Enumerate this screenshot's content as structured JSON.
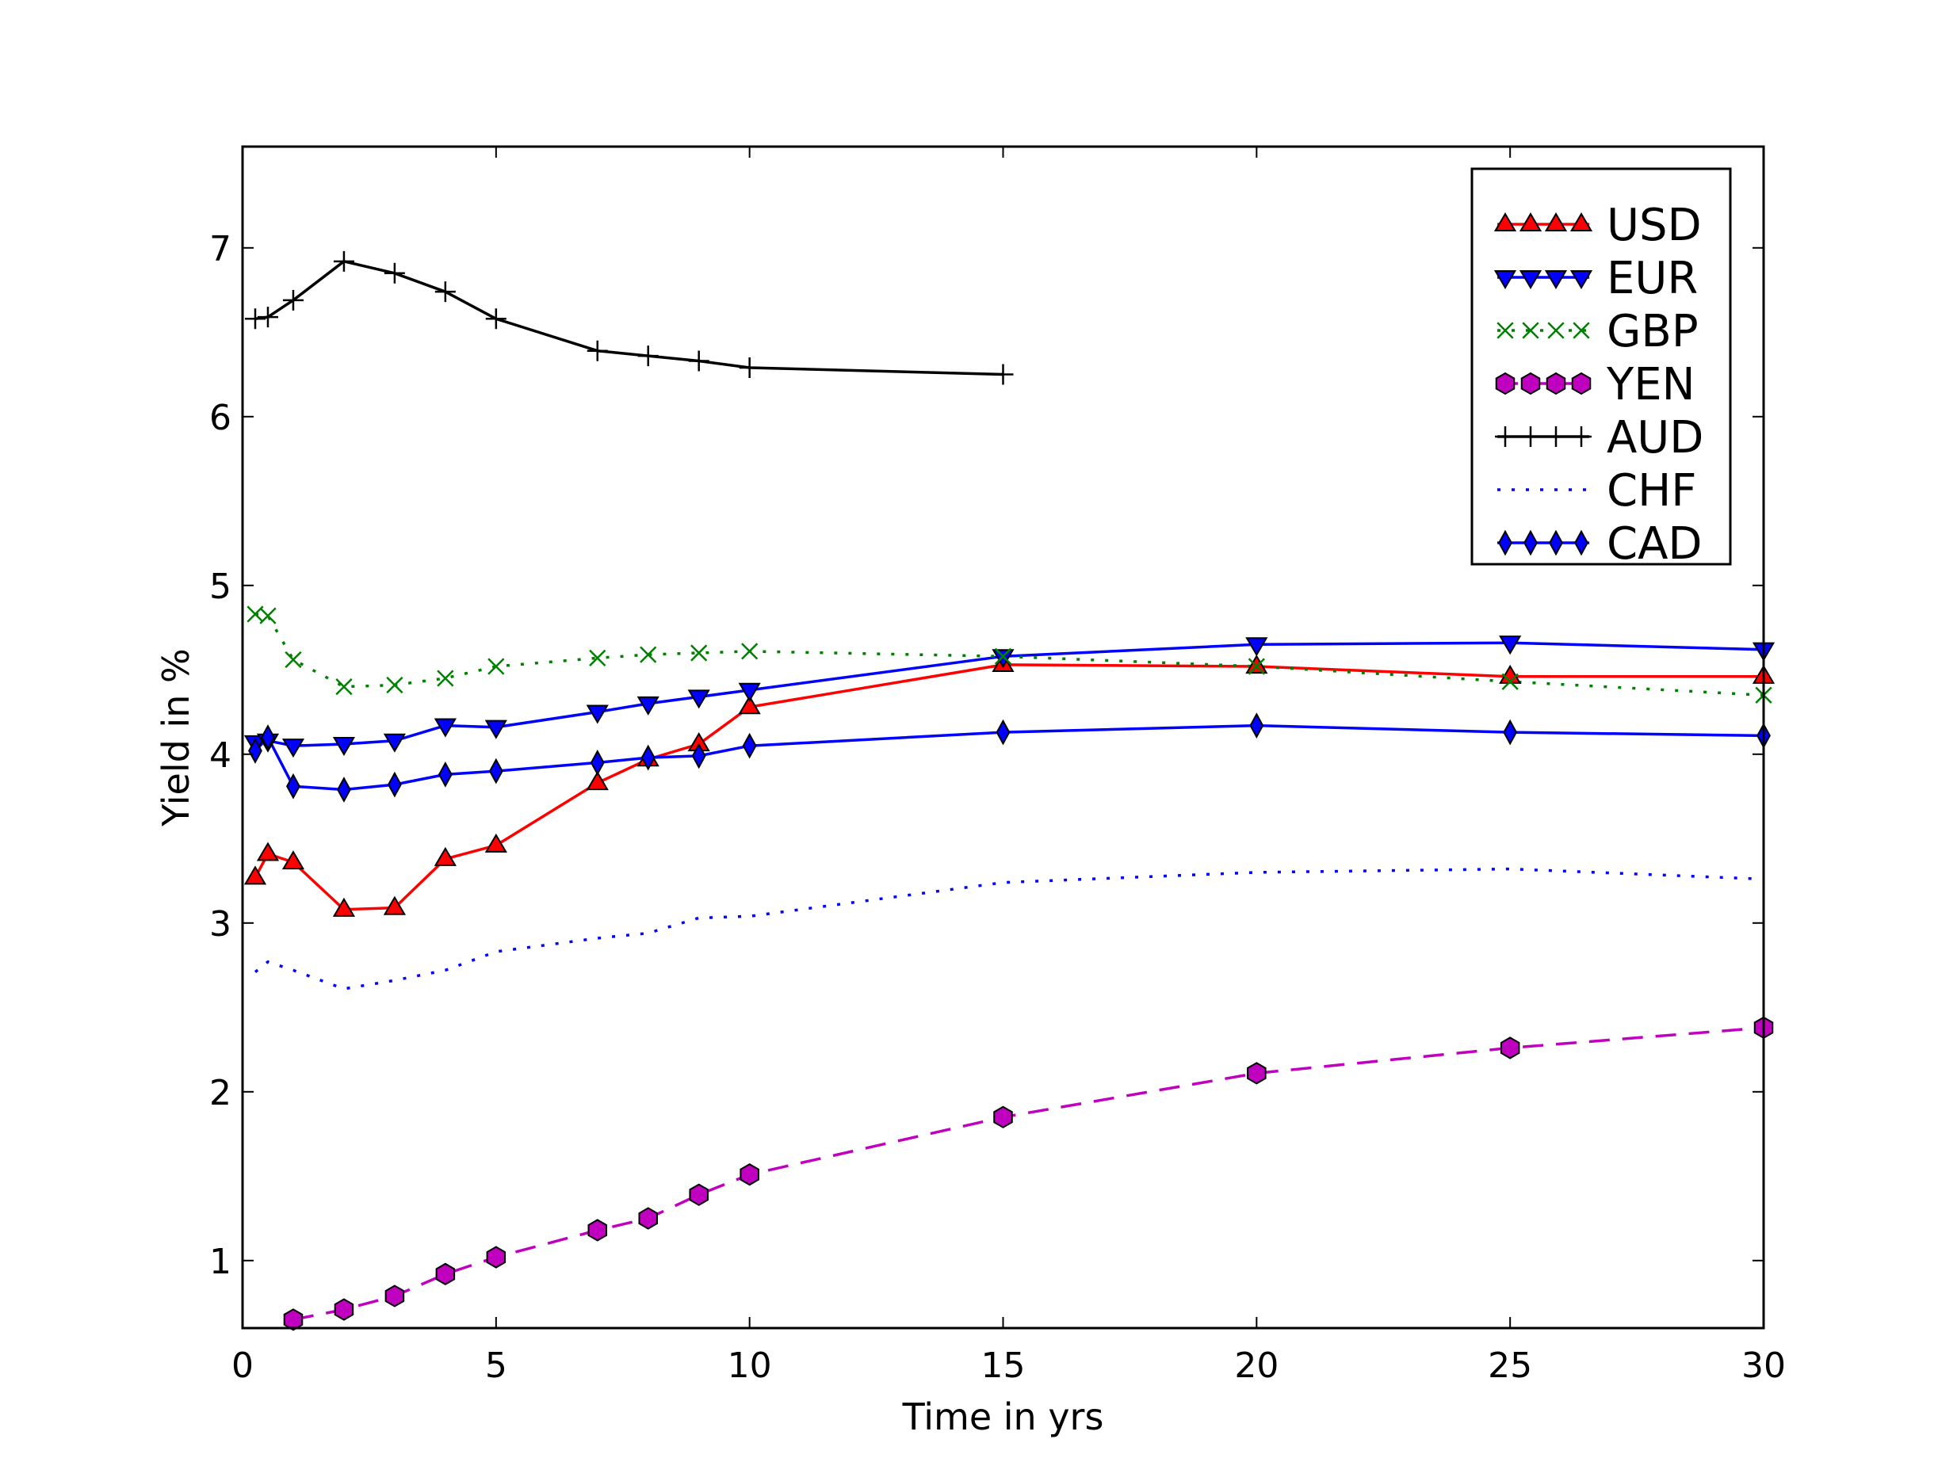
{
  "chart_data": {
    "type": "line",
    "xlabel": "Time in yrs",
    "ylabel": "Yield in %",
    "xlim": [
      0,
      30
    ],
    "ylim": [
      0.6,
      7.6
    ],
    "xticks": [
      0,
      5,
      10,
      15,
      20,
      25,
      30
    ],
    "yticks": [
      1,
      2,
      3,
      4,
      5,
      6,
      7
    ],
    "grid": false,
    "legend_position": "upper-right",
    "series": [
      {
        "name": "USD",
        "color": "#ff0000",
        "line_style": "solid",
        "marker": "triangle-up",
        "marker_color": "#ff0000",
        "x": [
          0.25,
          0.5,
          1,
          2,
          3,
          4,
          5,
          7,
          8,
          9,
          10,
          15,
          20,
          25,
          30
        ],
        "y": [
          3.27,
          3.41,
          3.36,
          3.08,
          3.09,
          3.38,
          3.46,
          3.83,
          3.97,
          4.06,
          4.28,
          4.53,
          4.52,
          4.46,
          4.46
        ]
      },
      {
        "name": "EUR",
        "color": "#0000ff",
        "line_style": "solid",
        "marker": "triangle-down",
        "marker_color": "#0000ff",
        "x": [
          0.25,
          0.5,
          1,
          2,
          3,
          4,
          5,
          7,
          8,
          9,
          10,
          15,
          20,
          25,
          30
        ],
        "y": [
          4.07,
          4.08,
          4.05,
          4.06,
          4.08,
          4.17,
          4.16,
          4.25,
          4.3,
          4.34,
          4.38,
          4.58,
          4.65,
          4.66,
          4.62
        ]
      },
      {
        "name": "GBP",
        "color": "#008000",
        "line_style": "dotted",
        "marker": "x",
        "marker_color": "#008000",
        "x": [
          0.25,
          0.5,
          1,
          2,
          3,
          4,
          5,
          7,
          8,
          9,
          10,
          15,
          20,
          25,
          30
        ],
        "y": [
          4.83,
          4.82,
          4.56,
          4.4,
          4.41,
          4.45,
          4.52,
          4.57,
          4.59,
          4.6,
          4.61,
          4.58,
          4.52,
          4.43,
          4.35
        ]
      },
      {
        "name": "YEN",
        "color": "#bf00bf",
        "line_style": "dashed",
        "marker": "hexagon",
        "marker_color": "#bf00bf",
        "x": [
          1,
          2,
          3,
          4,
          5,
          7,
          8,
          9,
          10,
          15,
          20,
          25,
          30
        ],
        "y": [
          0.65,
          0.71,
          0.79,
          0.92,
          1.02,
          1.18,
          1.25,
          1.39,
          1.51,
          1.85,
          2.11,
          2.26,
          2.38
        ]
      },
      {
        "name": "AUD",
        "color": "#000000",
        "line_style": "solid",
        "marker": "plus",
        "marker_color": "#000000",
        "x": [
          0.25,
          0.5,
          1,
          2,
          3,
          4,
          5,
          7,
          8,
          9,
          10,
          15
        ],
        "y": [
          6.58,
          6.59,
          6.69,
          6.92,
          6.85,
          6.74,
          6.58,
          6.39,
          6.36,
          6.33,
          6.29,
          6.25
        ]
      },
      {
        "name": "CHF",
        "color": "#0000ff",
        "line_style": "dotted",
        "marker": "none",
        "marker_color": "#0000ff",
        "x": [
          0.25,
          0.5,
          1,
          2,
          3,
          4,
          5,
          7,
          8,
          9,
          10,
          15,
          20,
          25,
          30
        ],
        "y": [
          2.71,
          2.77,
          2.72,
          2.61,
          2.66,
          2.72,
          2.83,
          2.91,
          2.94,
          3.03,
          3.04,
          3.24,
          3.3,
          3.32,
          3.26
        ]
      },
      {
        "name": "CAD",
        "color": "#0000ff",
        "line_style": "solid",
        "marker": "diamond",
        "marker_color": "#0000ff",
        "x": [
          0.25,
          0.5,
          1,
          2,
          3,
          4,
          5,
          7,
          8,
          9,
          10,
          15,
          20,
          25,
          30
        ],
        "y": [
          4.02,
          4.1,
          3.81,
          3.79,
          3.82,
          3.88,
          3.9,
          3.95,
          3.98,
          3.99,
          4.05,
          4.13,
          4.17,
          4.13,
          4.11
        ]
      }
    ]
  }
}
